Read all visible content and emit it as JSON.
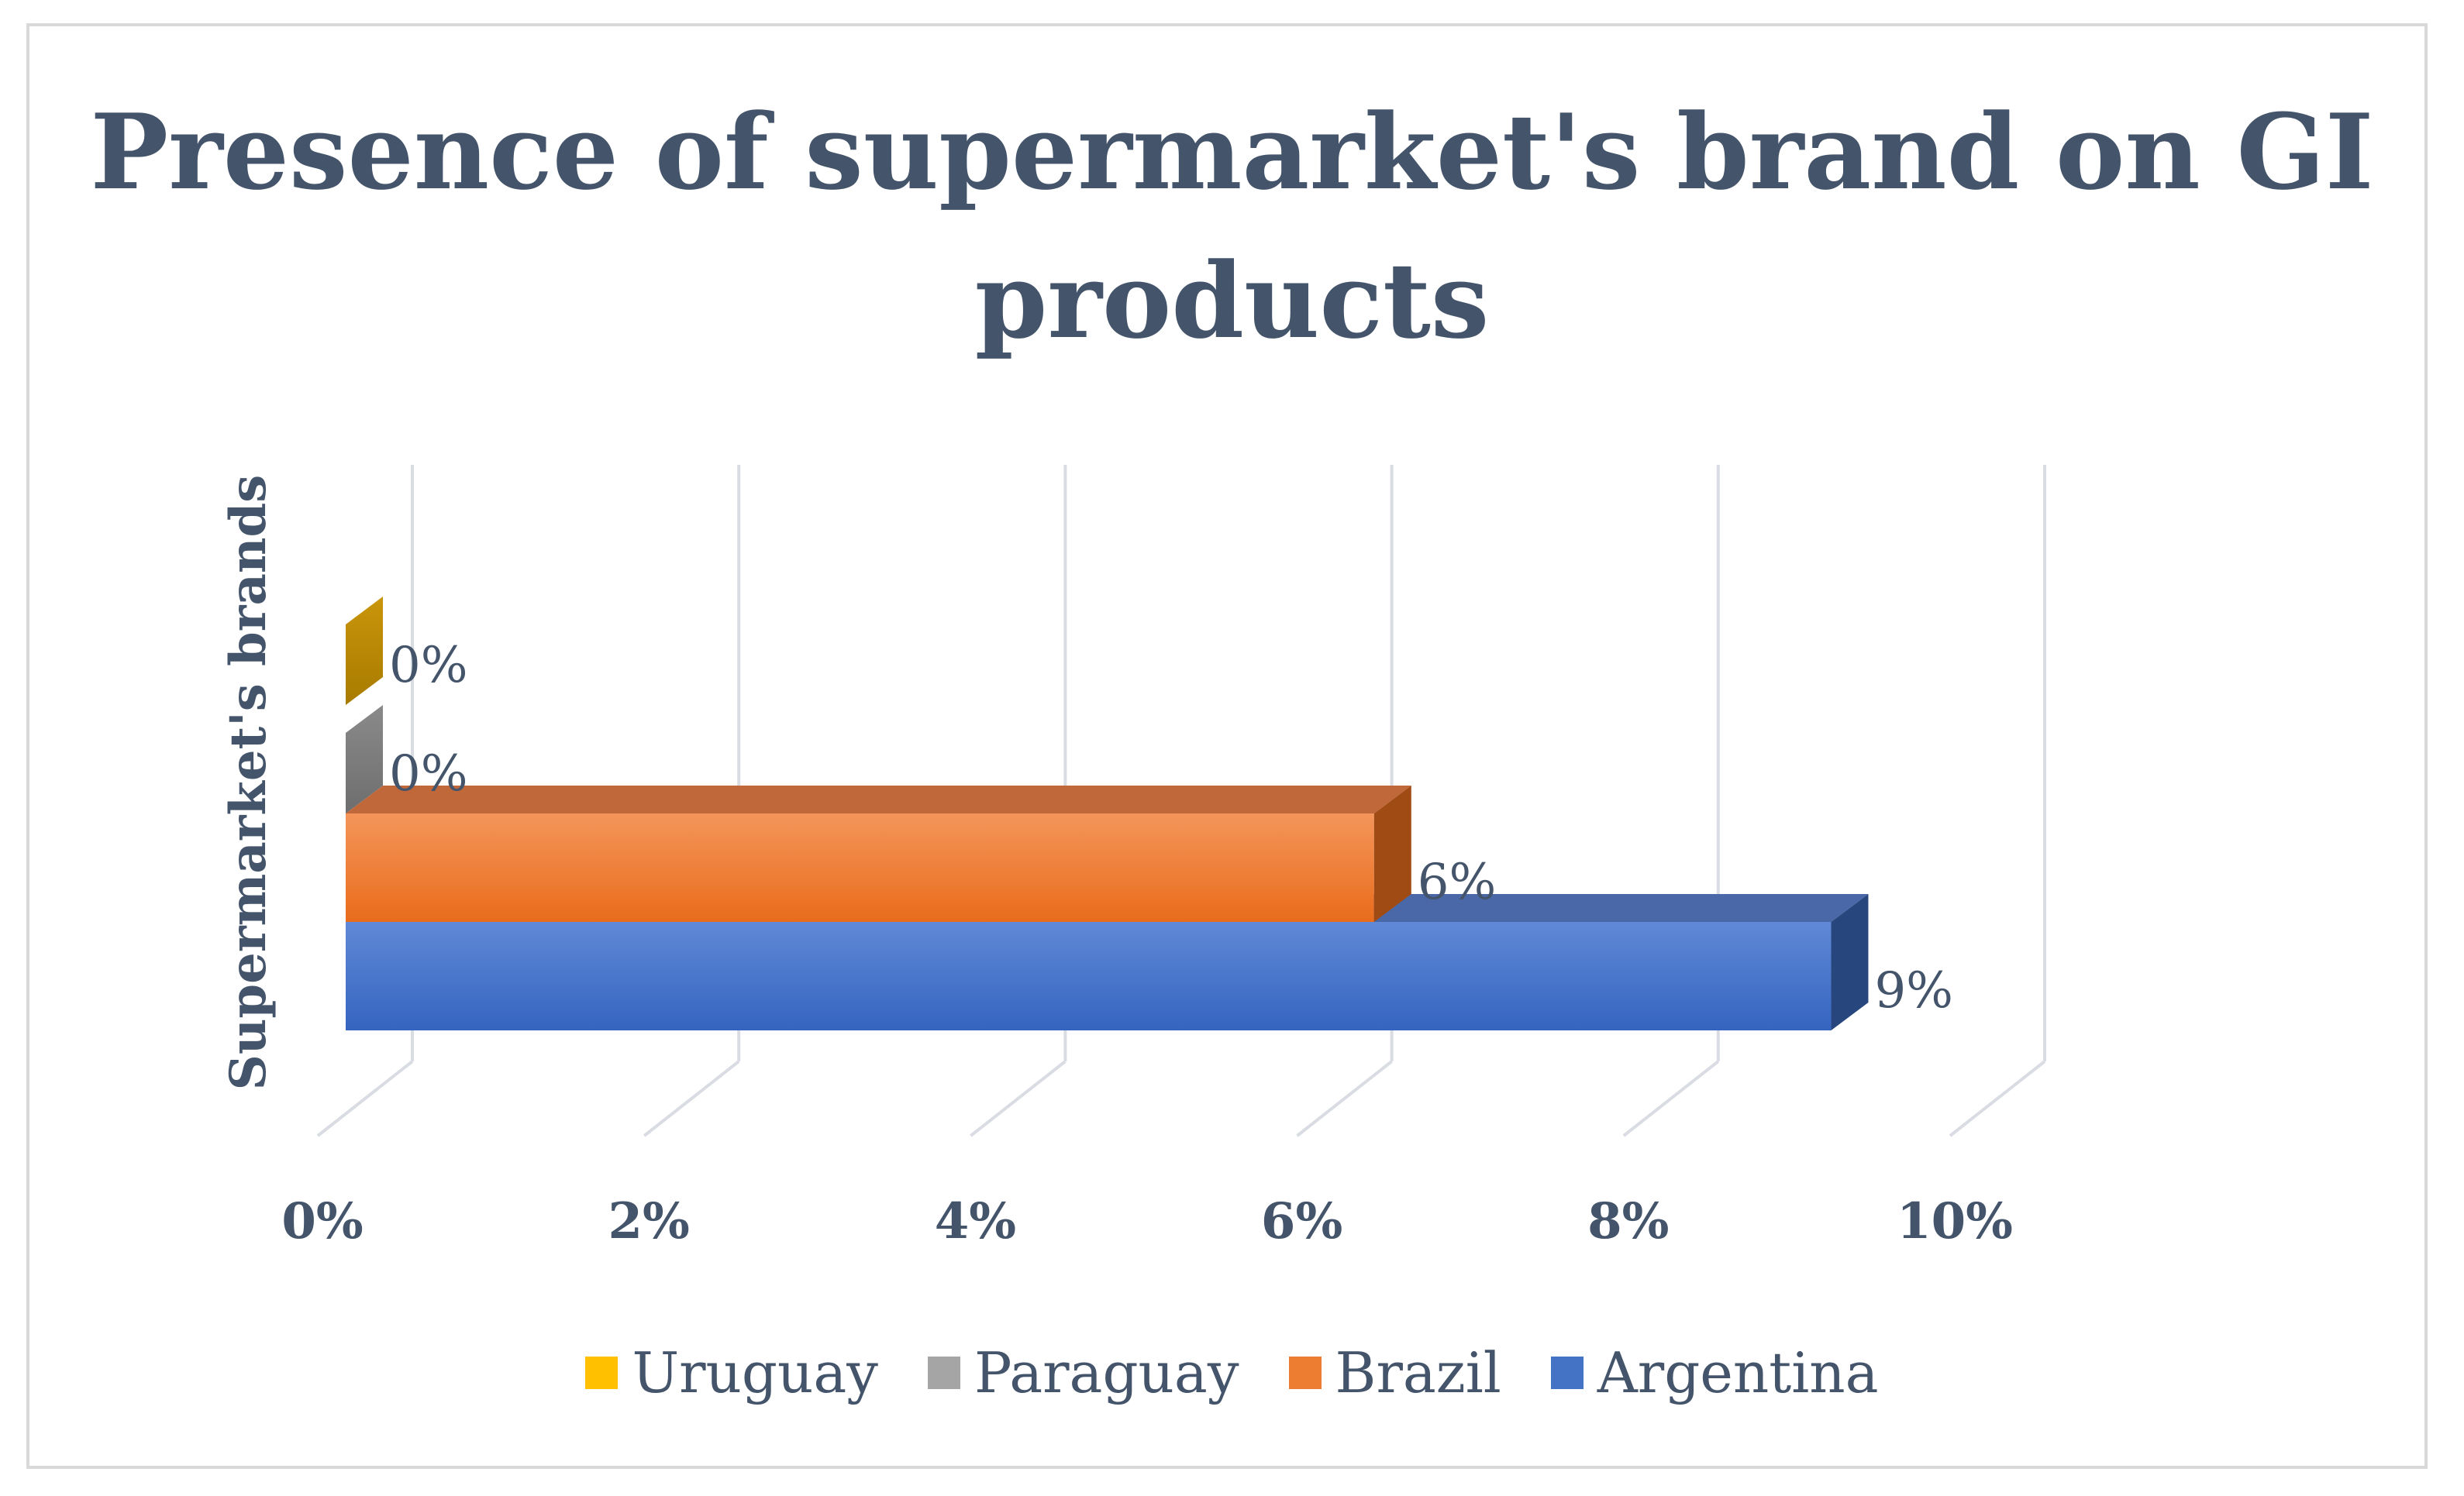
{
  "chart_data": {
    "type": "bar",
    "orientation": "horizontal",
    "title": "Presence of supermarket's brand on GI products",
    "ylabel": "Supermarket's brands",
    "xlabel": "",
    "categories": [
      "Supermarket's brands"
    ],
    "xlim": [
      0,
      0.1
    ],
    "x_ticks": [
      0,
      0.02,
      0.04,
      0.06,
      0.08,
      0.1
    ],
    "x_tick_labels": [
      "0%",
      "2%",
      "4%",
      "6%",
      "8%",
      "10%"
    ],
    "grid": true,
    "style": "3d",
    "legend_position": "bottom",
    "series": [
      {
        "name": "Uruguay",
        "values": [
          0
        ],
        "label": "0%",
        "color": "#ffc000"
      },
      {
        "name": "Paraguay",
        "values": [
          0
        ],
        "label": "0%",
        "color": "#a5a5a5"
      },
      {
        "name": "Brazil",
        "values": [
          0.063
        ],
        "label": "6%",
        "color": "#ed7d31"
      },
      {
        "name": "Argentina",
        "values": [
          0.091
        ],
        "label": "9%",
        "color": "#4472c4"
      }
    ]
  }
}
